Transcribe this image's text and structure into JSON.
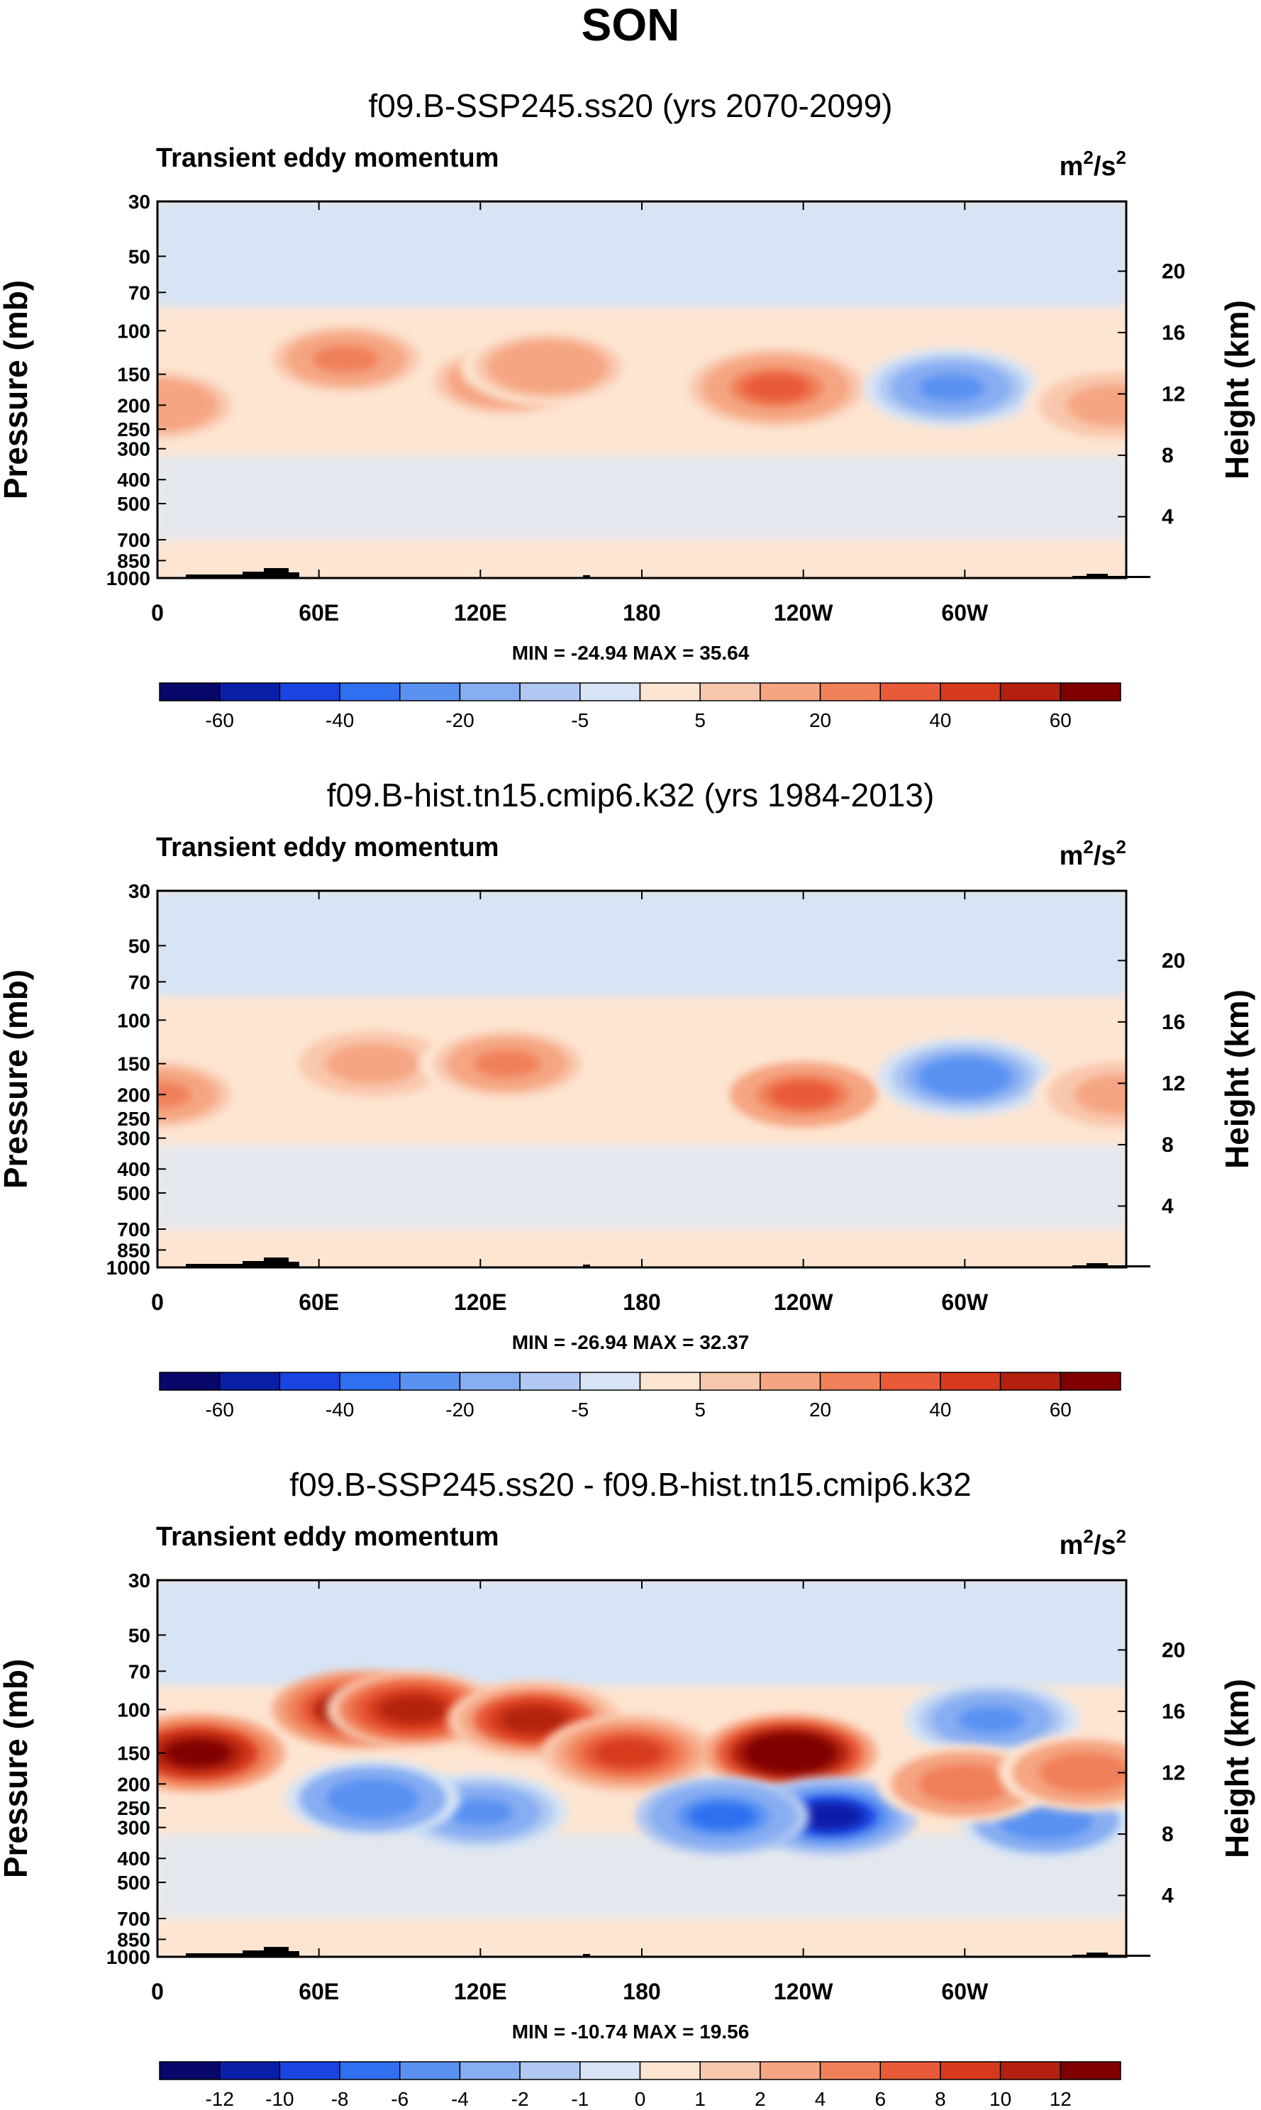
{
  "figure": {
    "season": "SON"
  },
  "colors": {
    "low": "#f0f0f0",
    "dark_blue": "#08306b",
    "dark_red": "#7f0000",
    "ramp": [
      "#08086b",
      "#0a1fa8",
      "#1a44e0",
      "#2f6ff0",
      "#5a92f2",
      "#87adf2",
      "#b0c8f2",
      "#d6e4f5",
      "#fde5d2",
      "#f9c7ad",
      "#f5a582",
      "#f0805a",
      "#e85a38",
      "#d63a1c",
      "#b32010",
      "#800000"
    ]
  },
  "chart_data": [
    {
      "type": "heatmap",
      "title": "f09.B-SSP245.ss20 (yrs 2070-2099)",
      "subtitle": "Transient eddy momentum",
      "units": "m²/s²",
      "units_base": "m",
      "units_sup": "2",
      "units_mid": "/s",
      "units_sup2": "2",
      "ylabel": "Pressure (mb)",
      "y2label": "Height (km)",
      "xticks": [
        "0",
        "60E",
        "120E",
        "180",
        "120W",
        "60W"
      ],
      "yticks": [
        "30",
        "50",
        "70",
        "100",
        "150",
        "200",
        "250",
        "300",
        "400",
        "500",
        "700",
        "850",
        "1000"
      ],
      "ytick_values": [
        30,
        50,
        70,
        100,
        150,
        200,
        250,
        300,
        400,
        500,
        700,
        850,
        1000
      ],
      "y2ticks": [
        "20",
        "16",
        "12",
        "8",
        "4"
      ],
      "y2tick_values": [
        20,
        16,
        12,
        8,
        4
      ],
      "stats": "MIN = -24.94   MAX = 35.64",
      "min": -24.94,
      "max": 35.64,
      "colorbar_labels": [
        "-60",
        "-40",
        "-20",
        "-5",
        "5",
        "20",
        "40",
        "60"
      ],
      "features": [
        {
          "lon": 0,
          "p": 200,
          "value": 20
        },
        {
          "lon": 70,
          "p": 130,
          "value": 22
        },
        {
          "lon": 130,
          "p": 160,
          "value": 24
        },
        {
          "lon": 145,
          "p": 140,
          "value": 20
        },
        {
          "lon": 230,
          "p": 170,
          "value": 35.64
        },
        {
          "lon": 295,
          "p": 170,
          "value": -24.94
        },
        {
          "lon": 355,
          "p": 200,
          "value": 18
        }
      ]
    },
    {
      "type": "heatmap",
      "title": "f09.B-hist.tn15.cmip6.k32 (yrs 1984-2013)",
      "subtitle": "Transient eddy momentum",
      "units": "m²/s²",
      "units_base": "m",
      "units_sup": "2",
      "units_mid": "/s",
      "units_sup2": "2",
      "ylabel": "Pressure (mb)",
      "y2label": "Height (km)",
      "xticks": [
        "0",
        "60E",
        "120E",
        "180",
        "120W",
        "60W"
      ],
      "yticks": [
        "30",
        "50",
        "70",
        "100",
        "150",
        "200",
        "250",
        "300",
        "400",
        "500",
        "700",
        "850",
        "1000"
      ],
      "ytick_values": [
        30,
        50,
        70,
        100,
        150,
        200,
        250,
        300,
        400,
        500,
        700,
        850,
        1000
      ],
      "y2ticks": [
        "20",
        "16",
        "12",
        "8",
        "4"
      ],
      "y2tick_values": [
        20,
        16,
        12,
        8,
        4
      ],
      "stats": "MIN = -26.94   MAX = 32.37",
      "min": -26.94,
      "max": 32.37,
      "colorbar_labels": [
        "-60",
        "-40",
        "-20",
        "-5",
        "5",
        "20",
        "40",
        "60"
      ],
      "features": [
        {
          "lon": 0,
          "p": 200,
          "value": 22
        },
        {
          "lon": 80,
          "p": 150,
          "value": 18
        },
        {
          "lon": 130,
          "p": 150,
          "value": 26
        },
        {
          "lon": 240,
          "p": 200,
          "value": 32.37
        },
        {
          "lon": 300,
          "p": 170,
          "value": -26.94
        },
        {
          "lon": 358,
          "p": 200,
          "value": 18
        }
      ]
    },
    {
      "type": "heatmap",
      "title": "f09.B-SSP245.ss20 - f09.B-hist.tn15.cmip6.k32",
      "subtitle": "Transient eddy momentum",
      "units": "m²/s²",
      "units_base": "m",
      "units_sup": "2",
      "units_mid": "/s",
      "units_sup2": "2",
      "ylabel": "Pressure (mb)",
      "y2label": "Height (km)",
      "xticks": [
        "0",
        "60E",
        "120E",
        "180",
        "120W",
        "60W"
      ],
      "yticks": [
        "30",
        "50",
        "70",
        "100",
        "150",
        "200",
        "250",
        "300",
        "400",
        "500",
        "700",
        "850",
        "1000"
      ],
      "ytick_values": [
        30,
        50,
        70,
        100,
        150,
        200,
        250,
        300,
        400,
        500,
        700,
        850,
        1000
      ],
      "y2ticks": [
        "20",
        "16",
        "12",
        "8",
        "4"
      ],
      "y2tick_values": [
        20,
        16,
        12,
        8,
        4
      ],
      "stats": "MIN = -10.74   MAX = 19.56",
      "min": -10.74,
      "max": 19.56,
      "colorbar_labels": [
        "-12",
        "-10",
        "-8",
        "-6",
        "-4",
        "-2",
        "-1",
        "0",
        "1",
        "2",
        "4",
        "6",
        "8",
        "10",
        "12"
      ],
      "features": [
        {
          "lon": 15,
          "p": 150,
          "value": 16
        },
        {
          "lon": 75,
          "p": 100,
          "value": 14
        },
        {
          "lon": 95,
          "p": 100,
          "value": 12
        },
        {
          "lon": 140,
          "p": 110,
          "value": 11
        },
        {
          "lon": 175,
          "p": 150,
          "value": 9
        },
        {
          "lon": 235,
          "p": 150,
          "value": 19.56
        },
        {
          "lon": 250,
          "p": 270,
          "value": -10.74
        },
        {
          "lon": 210,
          "p": 270,
          "value": -7
        },
        {
          "lon": 120,
          "p": 260,
          "value": -5
        },
        {
          "lon": 80,
          "p": 230,
          "value": -6
        },
        {
          "lon": 310,
          "p": 110,
          "value": -5
        },
        {
          "lon": 330,
          "p": 280,
          "value": -6
        },
        {
          "lon": 300,
          "p": 200,
          "value": 6
        },
        {
          "lon": 345,
          "p": 180,
          "value": 6
        }
      ]
    }
  ]
}
